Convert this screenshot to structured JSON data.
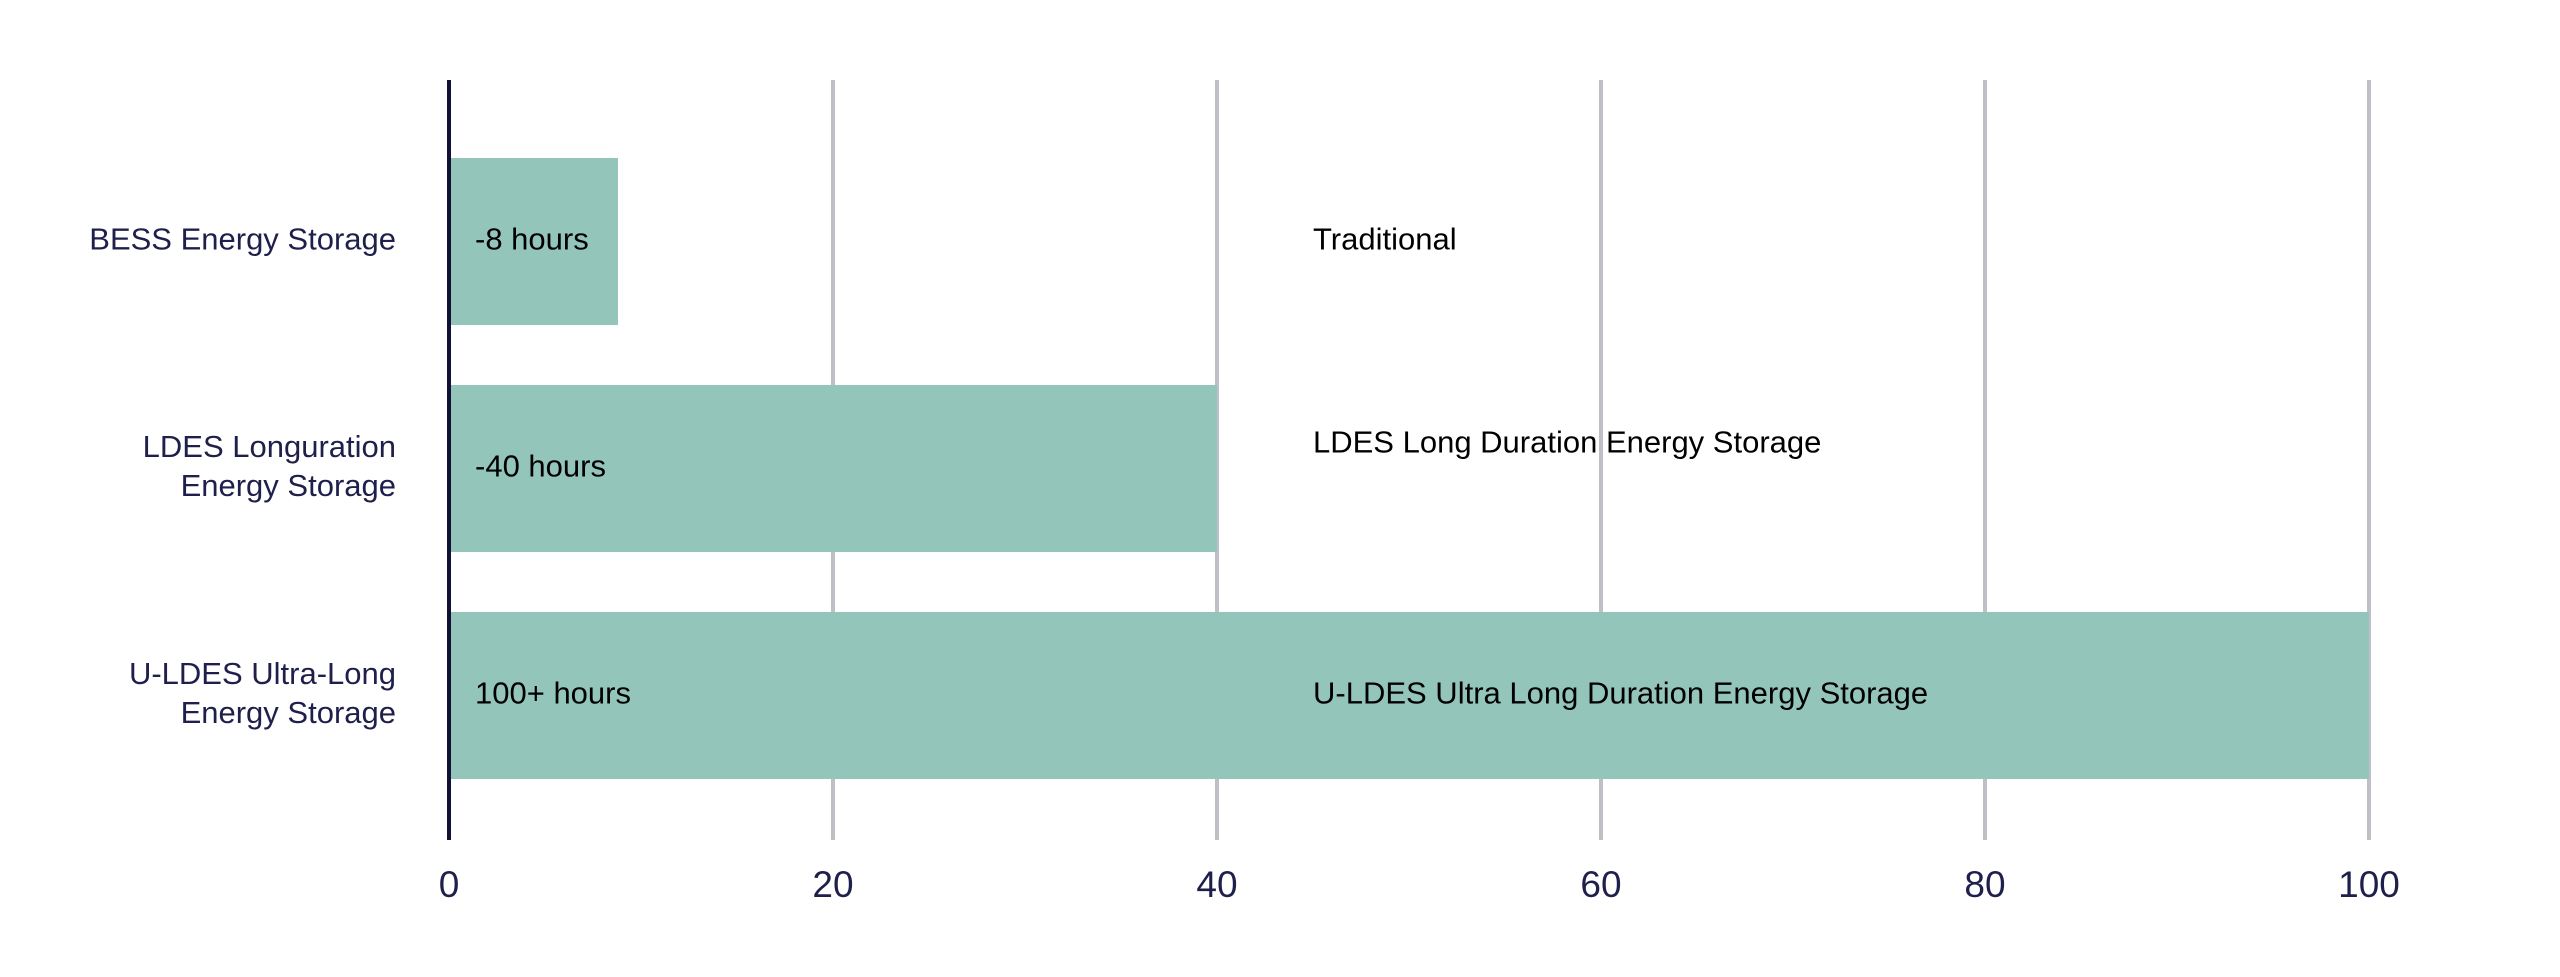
{
  "chart_data": {
    "type": "bar",
    "orientation": "horizontal",
    "categories": [
      [
        "BESS Energy Storage"
      ],
      [
        "LDES Longuration",
        "Energy Storage"
      ],
      [
        "U-LDES Ultra-Long",
        "Energy Storage"
      ]
    ],
    "values": [
      8.8,
      40,
      100
    ],
    "bar_labels": [
      "-8 hours",
      "-40 hours",
      "100+ hours"
    ],
    "annotations": [
      "Traditional",
      "LDES Long Duration Energy Storage",
      "U-LDES Ultra Long Duration Energy Storage"
    ],
    "annotation_x": 45,
    "xticks": [
      0,
      20,
      40,
      60,
      80,
      100
    ],
    "xlim": [
      0,
      100
    ],
    "grid": true,
    "title": "",
    "xlabel": "",
    "ylabel": "",
    "colors": {
      "bar": "#93c5ba",
      "grid": "#bfbfc6",
      "axis": "#111133",
      "text": "#1e1f4b"
    }
  }
}
